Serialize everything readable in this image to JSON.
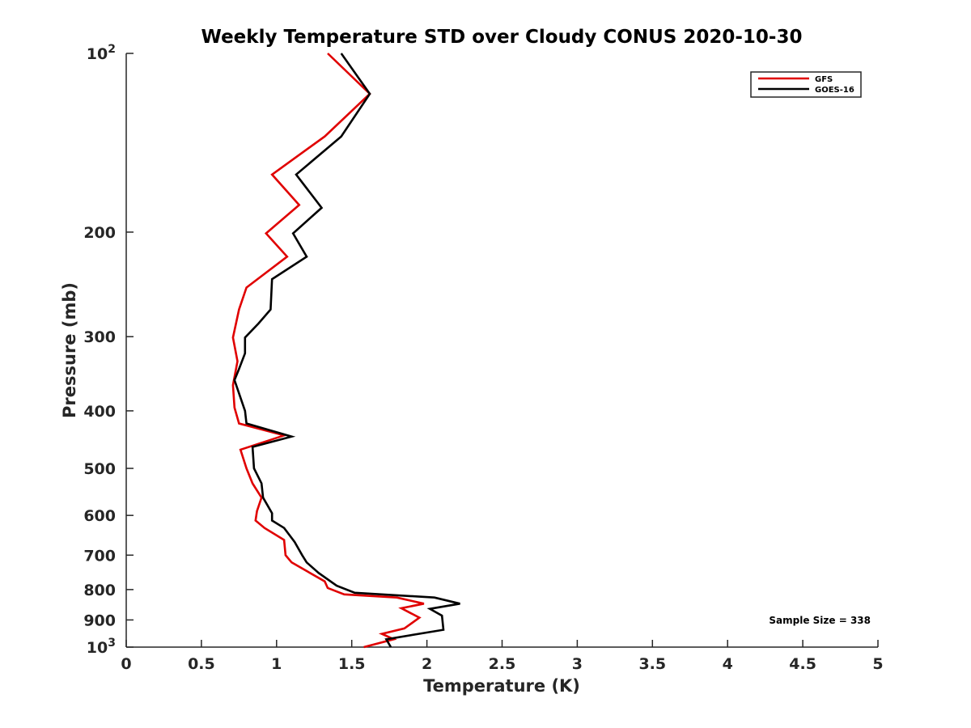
{
  "chart_data": {
    "type": "line",
    "title": "Weekly Temperature STD over Cloudy CONUS 2020-10-30",
    "xlabel": "Temperature (K)",
    "ylabel": "Pressure (mb)",
    "xlim": [
      0,
      5
    ],
    "ylim": [
      100,
      1000
    ],
    "yscale": "log",
    "y_reversed": true,
    "grid": false,
    "legend_position": "top-right",
    "x_ticks": [
      "0",
      "0.5",
      "1",
      "1.5",
      "2",
      "2.5",
      "3",
      "3.5",
      "4",
      "4.5",
      "5"
    ],
    "x_tick_values": [
      0,
      0.5,
      1,
      1.5,
      2,
      2.5,
      3,
      3.5,
      4,
      4.5,
      5
    ],
    "y_ticks": [
      {
        "value": 100,
        "base": "10",
        "exp": "2"
      },
      {
        "value": 200,
        "label": "200"
      },
      {
        "value": 300,
        "label": "300"
      },
      {
        "value": 400,
        "label": "400"
      },
      {
        "value": 500,
        "label": "500"
      },
      {
        "value": 600,
        "label": "600"
      },
      {
        "value": 700,
        "label": "700"
      },
      {
        "value": 800,
        "label": "800"
      },
      {
        "value": 900,
        "label": "900"
      },
      {
        "value": 1000,
        "base": "10",
        "exp": "3"
      }
    ],
    "annotation": "Sample Size = 338",
    "series": [
      {
        "name": "GFS",
        "color": "#e00000",
        "points": [
          [
            1.34,
            100
          ],
          [
            1.62,
            117
          ],
          [
            1.32,
            138
          ],
          [
            0.97,
            160
          ],
          [
            1.15,
            180
          ],
          [
            0.93,
            201
          ],
          [
            1.07,
            220
          ],
          [
            0.8,
            248
          ],
          [
            0.75,
            270
          ],
          [
            0.71,
            301
          ],
          [
            0.74,
            330
          ],
          [
            0.71,
            362
          ],
          [
            0.72,
            395
          ],
          [
            0.75,
            420
          ],
          [
            1.05,
            440
          ],
          [
            0.76,
            465
          ],
          [
            0.8,
            500
          ],
          [
            0.84,
            530
          ],
          [
            0.9,
            560
          ],
          [
            0.87,
            590
          ],
          [
            0.86,
            612
          ],
          [
            0.92,
            630
          ],
          [
            1.05,
            660
          ],
          [
            1.06,
            700
          ],
          [
            1.1,
            720
          ],
          [
            1.32,
            775
          ],
          [
            1.34,
            795
          ],
          [
            1.45,
            815
          ],
          [
            1.8,
            825
          ],
          [
            1.98,
            845
          ],
          [
            1.83,
            860
          ],
          [
            1.95,
            892
          ],
          [
            1.85,
            930
          ],
          [
            1.7,
            950
          ],
          [
            1.78,
            970
          ],
          [
            1.58,
            1000
          ]
        ]
      },
      {
        "name": "GOES-16",
        "color": "#000000",
        "points": [
          [
            1.43,
            100
          ],
          [
            1.62,
            117
          ],
          [
            1.43,
            138
          ],
          [
            1.13,
            160
          ],
          [
            1.3,
            182
          ],
          [
            1.11,
            201
          ],
          [
            1.2,
            220
          ],
          [
            0.97,
            240
          ],
          [
            0.96,
            270
          ],
          [
            0.88,
            285
          ],
          [
            0.79,
            301
          ],
          [
            0.79,
            320
          ],
          [
            0.75,
            340
          ],
          [
            0.72,
            355
          ],
          [
            0.79,
            400
          ],
          [
            0.8,
            420
          ],
          [
            1.1,
            442
          ],
          [
            0.84,
            460
          ],
          [
            0.85,
            500
          ],
          [
            0.9,
            530
          ],
          [
            0.91,
            560
          ],
          [
            0.97,
            595
          ],
          [
            0.97,
            612
          ],
          [
            1.05,
            630
          ],
          [
            1.12,
            665
          ],
          [
            1.17,
            700
          ],
          [
            1.2,
            720
          ],
          [
            1.28,
            750
          ],
          [
            1.4,
            788
          ],
          [
            1.52,
            810
          ],
          [
            2.05,
            825
          ],
          [
            2.22,
            845
          ],
          [
            2.02,
            862
          ],
          [
            2.1,
            885
          ],
          [
            2.11,
            935
          ],
          [
            1.73,
            970
          ],
          [
            1.76,
            1000
          ]
        ]
      }
    ]
  }
}
